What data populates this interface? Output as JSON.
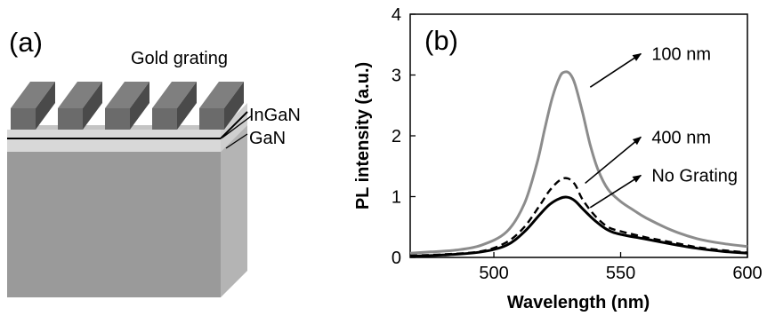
{
  "panel_a": {
    "label": "(a)",
    "labels": {
      "gold": "Gold grating",
      "ingan": "InGaN",
      "gan": "GaN"
    },
    "colors": {
      "bar_top": "#7f7f7f",
      "bar_front": "#6b6b6b",
      "bar_side": "#4a4a4a",
      "layer_light": "#d8d8d8",
      "substrate_front": "#9a9a9a",
      "substrate_side": "#b4b4b4",
      "substrate_top": "#c4c4c4"
    }
  },
  "panel_b": {
    "label": "(b)"
  },
  "chart_data": {
    "type": "line",
    "xlabel": "Wavelength (nm)",
    "ylabel": "PL intensity (a.u.)",
    "xlim": [
      467,
      600
    ],
    "ylim": [
      0,
      4
    ],
    "xticks": [
      500,
      550,
      600
    ],
    "yticks": [
      0,
      1,
      2,
      3,
      4
    ],
    "series": [
      {
        "name": "100 nm",
        "color": "#8c8c8c",
        "style": "solid",
        "x": [
          467,
          475,
          485,
          495,
          505,
          512,
          517,
          520,
          523,
          526,
          528,
          530,
          532,
          535,
          538,
          541,
          545,
          550,
          555,
          560,
          570,
          580,
          590,
          600
        ],
        "y": [
          0.07,
          0.09,
          0.12,
          0.2,
          0.42,
          0.88,
          1.55,
          2.1,
          2.62,
          2.97,
          3.05,
          3.02,
          2.85,
          2.38,
          1.85,
          1.45,
          1.12,
          0.92,
          0.78,
          0.65,
          0.45,
          0.31,
          0.23,
          0.18
        ]
      },
      {
        "name": "400 nm",
        "color": "#000000",
        "style": "dashed",
        "x": [
          467,
          480,
          495,
          505,
          512,
          518,
          522,
          526,
          529,
          532,
          535,
          540,
          545,
          550,
          560,
          570,
          580,
          590,
          600
        ],
        "y": [
          0.03,
          0.05,
          0.1,
          0.25,
          0.5,
          0.85,
          1.1,
          1.27,
          1.3,
          1.2,
          0.95,
          0.68,
          0.5,
          0.43,
          0.33,
          0.25,
          0.17,
          0.12,
          0.08
        ]
      },
      {
        "name": "No Grating",
        "color": "#000000",
        "style": "solid",
        "x": [
          467,
          480,
          495,
          505,
          512,
          518,
          522,
          526,
          529,
          532,
          535,
          540,
          545,
          550,
          560,
          570,
          580,
          590,
          600
        ],
        "y": [
          0.02,
          0.04,
          0.09,
          0.2,
          0.42,
          0.7,
          0.87,
          0.97,
          0.99,
          0.93,
          0.8,
          0.6,
          0.45,
          0.38,
          0.3,
          0.22,
          0.15,
          0.1,
          0.07
        ]
      }
    ],
    "annotations": [
      {
        "text": "100 nm",
        "arrow_from": [
          538,
          2.8
        ],
        "arrow_to": [
          558,
          3.35
        ]
      },
      {
        "text": "400 nm",
        "arrow_from": [
          536,
          1.22
        ],
        "arrow_to": [
          558,
          1.98
        ]
      },
      {
        "text": "No Grating",
        "arrow_from": [
          538,
          0.82
        ],
        "arrow_to": [
          558,
          1.35
        ]
      }
    ]
  }
}
